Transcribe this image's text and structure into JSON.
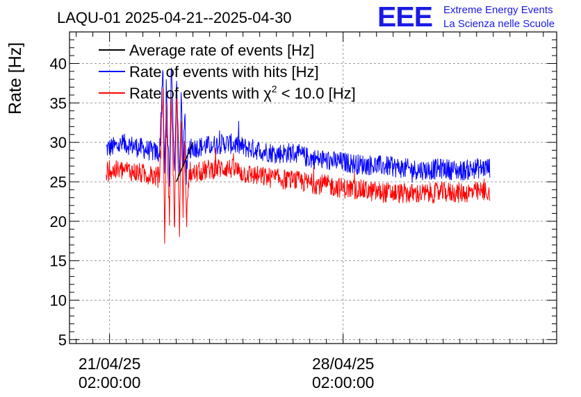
{
  "chart_data": {
    "type": "line",
    "title": "LAQU-01 2025-04-21--2025-04-30",
    "ylabel": "Rate [Hz]",
    "xlabel": "",
    "ylim": [
      4.5,
      44
    ],
    "yticks": [
      5,
      10,
      15,
      20,
      25,
      30,
      35,
      40
    ],
    "xlim_days": [
      -1.2,
      13.4
    ],
    "x_reference": "2025-04-21 02:00:00",
    "xticks": [
      {
        "day": 0,
        "date": "21/04/25",
        "time": "02:00:00"
      },
      {
        "day": 7,
        "date": "28/04/25",
        "time": "02:00:00"
      }
    ],
    "grid": true,
    "legend_position": "top-left",
    "colors": {
      "average": "#000000",
      "hits": "#0000ff",
      "chi2": "#ff0000",
      "logo": "#1a1ae6"
    },
    "legend": {
      "average": "Average rate of events [Hz]",
      "hits": "Rate of events with hits [Hz]",
      "chi2_prefix": "Rate of events with ",
      "chi2_symbol": "χ",
      "chi2_exp": "2",
      "chi2_suffix": " < 10.0 [Hz]"
    },
    "series": [
      {
        "name": "Rate of events with hits [Hz]",
        "color": "#0000ff",
        "x_days": [
          -0.1,
          0.5,
          1.0,
          1.5,
          1.6,
          1.65,
          1.7,
          1.8,
          1.85,
          1.95,
          2.0,
          2.1,
          2.15,
          2.2,
          2.25,
          2.3,
          2.4,
          2.5,
          3.0,
          3.5,
          3.8,
          4.0,
          4.5,
          5.0,
          5.5,
          6.0,
          6.5,
          7.0,
          7.5,
          8.0,
          8.5,
          9.0,
          9.5,
          10.0,
          10.5,
          11.0,
          11.4
        ],
        "values": [
          29.2,
          29.8,
          29.2,
          28.6,
          39.6,
          25.5,
          36.5,
          24.0,
          40.2,
          26.0,
          38.0,
          24.0,
          37.0,
          26.5,
          34.5,
          26.0,
          29.5,
          29.3,
          29.6,
          29.9,
          29.7,
          29.4,
          29.0,
          28.6,
          28.7,
          28.0,
          27.7,
          27.5,
          27.2,
          27.1,
          26.9,
          26.6,
          26.5,
          26.7,
          26.4,
          26.7,
          26.8
        ],
        "noise": 1.3
      },
      {
        "name": "Rate of events with χ2 < 10.0 [Hz]",
        "color": "#ff0000",
        "x_days": [
          -0.1,
          0.5,
          1.0,
          1.5,
          1.6,
          1.65,
          1.7,
          1.8,
          1.85,
          1.95,
          2.0,
          2.1,
          2.15,
          2.2,
          2.25,
          2.3,
          2.4,
          2.5,
          3.0,
          3.5,
          3.8,
          4.0,
          4.5,
          5.0,
          5.5,
          6.0,
          6.5,
          7.0,
          7.5,
          8.0,
          8.5,
          9.0,
          9.5,
          10.0,
          10.5,
          11.0,
          11.4
        ],
        "values": [
          26.3,
          26.5,
          26.0,
          25.6,
          37.0,
          17.5,
          33.5,
          20.0,
          37.5,
          18.0,
          36.5,
          18.5,
          34.5,
          21.0,
          31.0,
          20.0,
          26.2,
          26.0,
          26.6,
          26.8,
          26.5,
          26.1,
          25.7,
          25.4,
          25.2,
          24.8,
          24.6,
          24.2,
          24.0,
          23.7,
          23.6,
          23.5,
          23.5,
          23.7,
          23.6,
          23.7,
          23.8
        ],
        "noise": 1.3
      },
      {
        "name": "Average rate of events [Hz]",
        "color": "#000000",
        "x_days": [
          2.0,
          2.5
        ],
        "values": [
          25.0,
          30.0
        ]
      }
    ]
  },
  "logo": {
    "mark": "EEE",
    "line1": "Extreme Energy Events",
    "line2": "La Scienza nelle Scuole"
  }
}
